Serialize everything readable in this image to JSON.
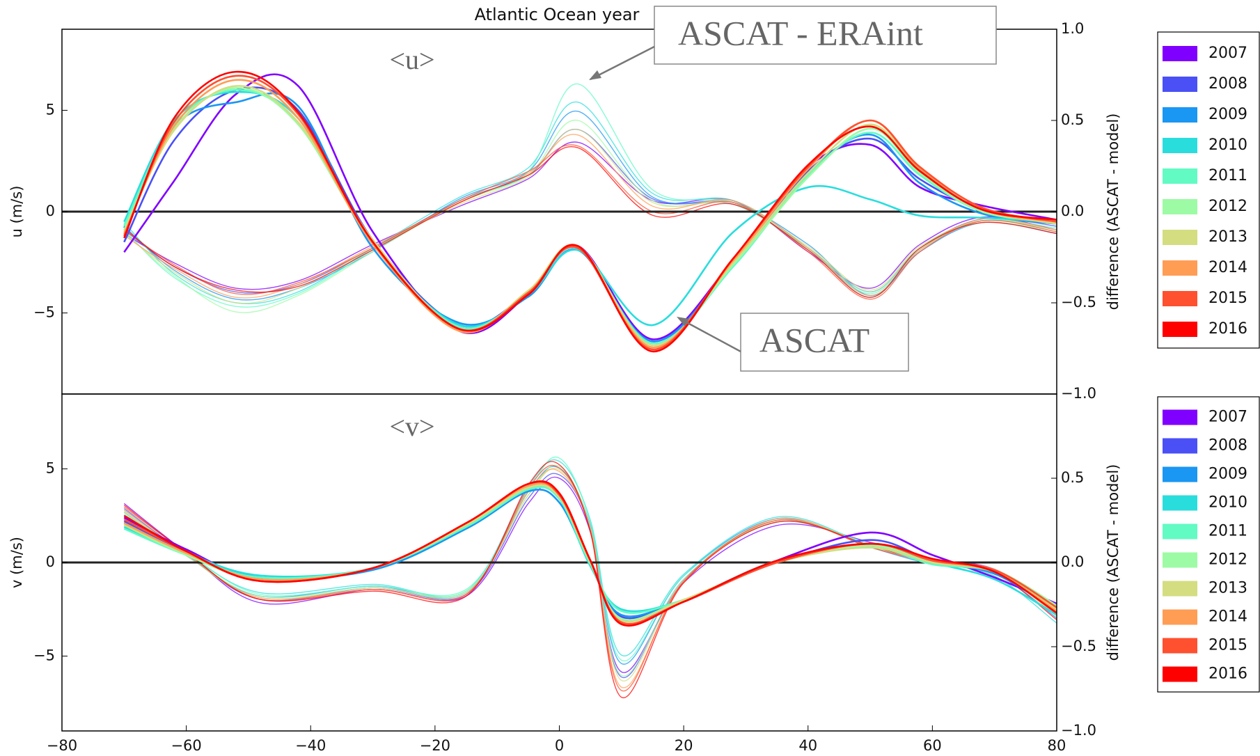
{
  "chart_data": [
    {
      "type": "line",
      "title": "Atlantic Ocean year",
      "ylabel": "u (m/s)",
      "y2label": "difference (ASCAT - model)",
      "annotations": [
        "<u>",
        "ASCAT - ERAint",
        "ASCAT"
      ],
      "x": [
        -70,
        -62,
        -52,
        -42,
        -30,
        -16,
        -5,
        3,
        15,
        28,
        40,
        50,
        58,
        68,
        80
      ],
      "xlim": [
        -80,
        80
      ],
      "ylim": [
        -9,
        9
      ],
      "yticks": [
        {
          "value": -5,
          "label": "−5"
        },
        0,
        5
      ],
      "y2lim": [
        -1,
        1
      ],
      "y2ticks": [
        {
          "value": -1,
          "label": "−1.0"
        },
        {
          "value": -0.5,
          "label": "−0.5"
        },
        {
          "value": 0,
          "label": "0.0"
        },
        0.5,
        {
          "value": 1,
          "label": "1.0"
        }
      ],
      "zero_line": true,
      "legend": "right outside",
      "series": [
        {
          "name": "2007",
          "color": "#8000ff",
          "values": [
            -2,
            1.5,
            5.8,
            6.2,
            -1,
            -5.9,
            -4.1,
            -1.7,
            -6.3,
            -2.4,
            2.2,
            3.3,
            1.2,
            0.3,
            -0.4
          ]
        },
        {
          "name": "2008",
          "color": "#4a50f5",
          "values": [
            -1.5,
            3.5,
            6,
            5,
            -1.4,
            -5.6,
            -4,
            -1.8,
            -6.4,
            -2.5,
            2,
            3.6,
            1.6,
            0.1,
            -0.5
          ]
        },
        {
          "name": "2009",
          "color": "#1a96f3",
          "values": [
            -0.8,
            4.2,
            5.4,
            5.2,
            -1.8,
            -5.5,
            -4.2,
            -1.9,
            -6.4,
            -2.6,
            1.9,
            3.8,
            1.4,
            -0.1,
            -0.6
          ]
        },
        {
          "name": "2010",
          "color": "#2adddd",
          "values": [
            -0.5,
            4.5,
            5.9,
            4.6,
            -1.6,
            -5.6,
            -4.1,
            -1.9,
            -5.6,
            -1,
            1.2,
            0.6,
            -0.2,
            -0.3,
            -0.5
          ]
        },
        {
          "name": "2011",
          "color": "#62fbc4",
          "values": [
            -0.7,
            4.3,
            6,
            4.4,
            -1.5,
            -5.7,
            -4,
            -1.8,
            -6.5,
            -2.7,
            1.8,
            3.9,
            1.8,
            0,
            -0.4
          ]
        },
        {
          "name": "2012",
          "color": "#9cfba4",
          "values": [
            -0.9,
            4.1,
            6.1,
            4.3,
            -1.5,
            -5.8,
            -4,
            -1.8,
            -6.6,
            -2.6,
            1.7,
            4.1,
            1.9,
            0,
            -0.5
          ]
        },
        {
          "name": "2013",
          "color": "#d4dd80",
          "values": [
            -1,
            4,
            6.2,
            4.4,
            -1.4,
            -5.8,
            -3.9,
            -1.7,
            -6.6,
            -2.5,
            1.9,
            4.3,
            2,
            0.1,
            -0.6
          ]
        },
        {
          "name": "2014",
          "color": "#ff9d55",
          "values": [
            -1.1,
            4.2,
            6.5,
            4.6,
            -1.6,
            -5.9,
            -4,
            -1.8,
            -6.7,
            -2.4,
            2.1,
            4.5,
            2.1,
            0.1,
            -0.5
          ]
        },
        {
          "name": "2015",
          "color": "#ff5030",
          "values": [
            -1.2,
            4.4,
            6.7,
            4.8,
            -1.5,
            -5.8,
            -4,
            -1.8,
            -6.8,
            -2.3,
            2.2,
            4.5,
            2.2,
            0.2,
            -0.5
          ]
        },
        {
          "name": "2016",
          "color": "#ff0000",
          "values": [
            -1.3,
            4.6,
            6.9,
            4.9,
            -1.5,
            -5.8,
            -4.1,
            -1.7,
            -6.9,
            -2.3,
            2.3,
            4.2,
            2,
            0.1,
            -0.4
          ]
        }
      ],
      "diff_series": [
        {
          "axis": "y2",
          "values": [
            -0.12,
            -0.28,
            -0.42,
            -0.38,
            -0.18,
            0.03,
            0.18,
            0.38,
            0.06,
            0.06,
            -0.22,
            -0.42,
            -0.18,
            -0.03,
            -0.1
          ]
        },
        {
          "axis": "y2",
          "values": [
            -0.1,
            -0.3,
            -0.44,
            -0.4,
            -0.2,
            0.06,
            0.2,
            0.45,
            0.07,
            0.04,
            -0.2,
            -0.44,
            -0.2,
            -0.04,
            -0.08
          ]
        },
        {
          "axis": "y2",
          "values": [
            -0.08,
            -0.32,
            -0.48,
            -0.42,
            -0.22,
            0.07,
            0.22,
            0.55,
            0.08,
            0.05,
            -0.18,
            -0.46,
            -0.22,
            -0.06,
            -0.12
          ]
        },
        {
          "axis": "y2",
          "values": [
            -0.06,
            -0.34,
            -0.5,
            -0.44,
            -0.2,
            0.08,
            0.24,
            0.6,
            0.1,
            0.06,
            -0.2,
            -0.47,
            -0.2,
            -0.05,
            -0.1
          ]
        },
        {
          "axis": "y2",
          "values": [
            -0.1,
            -0.36,
            -0.52,
            -0.45,
            -0.21,
            0.06,
            0.22,
            0.7,
            0.12,
            0.05,
            -0.21,
            -0.45,
            -0.21,
            -0.05,
            -0.09
          ]
        },
        {
          "axis": "y2",
          "values": [
            -0.11,
            -0.35,
            -0.55,
            -0.46,
            -0.22,
            0.05,
            0.2,
            0.5,
            0.06,
            0.04,
            -0.2,
            -0.44,
            -0.2,
            -0.06,
            -0.11
          ]
        },
        {
          "axis": "y2",
          "values": [
            -0.12,
            -0.33,
            -0.5,
            -0.42,
            -0.2,
            0.04,
            0.19,
            0.45,
            0.05,
            0.05,
            -0.19,
            -0.43,
            -0.19,
            -0.05,
            -0.1
          ]
        },
        {
          "axis": "y2",
          "values": [
            -0.13,
            -0.31,
            -0.47,
            -0.4,
            -0.19,
            0.05,
            0.21,
            0.42,
            0.03,
            0.06,
            -0.2,
            -0.46,
            -0.21,
            -0.04,
            -0.1
          ]
        },
        {
          "axis": "y2",
          "values": [
            -0.1,
            -0.29,
            -0.45,
            -0.39,
            -0.2,
            0.06,
            0.22,
            0.36,
            0,
            0.05,
            -0.22,
            -0.48,
            -0.22,
            -0.05,
            -0.11
          ]
        },
        {
          "axis": "y2",
          "values": [
            -0.09,
            -0.3,
            -0.43,
            -0.41,
            -0.21,
            0.05,
            0.2,
            0.35,
            -0.02,
            0.04,
            -0.21,
            -0.47,
            -0.2,
            -0.06,
            -0.12
          ]
        }
      ]
    },
    {
      "type": "line",
      "ylabel": "v (m/s)",
      "y2label": "difference (ASCAT - model)",
      "annotations": [
        "<v>"
      ],
      "x": [
        -70,
        -60,
        -48,
        -30,
        -15,
        -5,
        0,
        5,
        10,
        20,
        35,
        50,
        60,
        70,
        80
      ],
      "xlim": [
        -80,
        80
      ],
      "xticks": [
        {
          "value": -80,
          "label": "−80"
        },
        {
          "value": -60,
          "label": "−60"
        },
        {
          "value": -40,
          "label": "−40"
        },
        {
          "value": -20,
          "label": "−20"
        },
        0,
        20,
        40,
        60,
        80
      ],
      "ylim": [
        -9,
        9
      ],
      "yticks": [
        {
          "value": -5,
          "label": "−5"
        },
        0,
        5
      ],
      "y2lim": [
        -1,
        1
      ],
      "y2ticks": [
        {
          "value": -1,
          "label": "−1.0"
        },
        {
          "value": -0.5,
          "label": "−0.5"
        },
        {
          "value": 0,
          "label": "0.0"
        },
        0.5
      ],
      "zero_line": true,
      "legend": "right outside",
      "series": [
        {
          "name": "2007",
          "color": "#8000ff",
          "values": [
            2.4,
            0.7,
            -0.9,
            -0.3,
            2,
            4.1,
            3.6,
            0.1,
            -3,
            -2.1,
            0.1,
            1.6,
            0.4,
            -0.8,
            -2.2
          ]
        },
        {
          "name": "2008",
          "color": "#4a50f5",
          "values": [
            2.2,
            0.6,
            -0.8,
            -0.3,
            2,
            4,
            3.4,
            0,
            -2.9,
            -2,
            0,
            1.2,
            0.1,
            -0.6,
            -2.4
          ]
        },
        {
          "name": "2009",
          "color": "#1a96f3",
          "values": [
            2.1,
            0.5,
            -0.8,
            -0.4,
            1.8,
            3.8,
            3.2,
            -0.1,
            -2.8,
            -2,
            0,
            1,
            0,
            -0.6,
            -2.6
          ]
        },
        {
          "name": "2010",
          "color": "#2adddd",
          "values": [
            1.9,
            0.5,
            -0.7,
            -0.3,
            1.9,
            3.9,
            3.4,
            -0.2,
            -2.5,
            -2,
            0.1,
            0.9,
            0,
            -0.9,
            -2.8
          ]
        },
        {
          "name": "2011",
          "color": "#62fbc4",
          "values": [
            1.8,
            0.4,
            -0.8,
            -0.3,
            1.9,
            3.9,
            3.4,
            -0.1,
            -2.6,
            -2,
            0,
            0.8,
            -0.1,
            -0.5,
            -2.5
          ]
        },
        {
          "name": "2012",
          "color": "#9cfba4",
          "values": [
            2,
            0.4,
            -0.9,
            -0.3,
            2,
            4,
            3.5,
            0,
            -3,
            -2,
            0,
            0.9,
            0,
            -0.4,
            -2.3
          ]
        },
        {
          "name": "2013",
          "color": "#d4dd80",
          "values": [
            2,
            0.5,
            -0.9,
            -0.3,
            2,
            4,
            3.5,
            0,
            -3.1,
            -2,
            0,
            0.8,
            0,
            -0.5,
            -2.5
          ]
        },
        {
          "name": "2014",
          "color": "#ff9d55",
          "values": [
            2.1,
            0.5,
            -0.9,
            -0.3,
            2.1,
            4.1,
            3.6,
            0.1,
            -3.2,
            -2.1,
            0,
            1,
            0.1,
            -0.5,
            -2.6
          ]
        },
        {
          "name": "2015",
          "color": "#ff5030",
          "values": [
            2.3,
            0.6,
            -1,
            -0.3,
            2.1,
            4.2,
            3.6,
            0.1,
            -3.2,
            -2.1,
            0,
            1,
            0.1,
            -0.4,
            -2.4
          ]
        },
        {
          "name": "2016",
          "color": "#ff0000",
          "values": [
            2.5,
            0.6,
            -1,
            -0.3,
            2.1,
            4.2,
            3.7,
            0.1,
            -3.3,
            -2.1,
            0.1,
            1,
            0.2,
            -0.5,
            -2.7
          ]
        }
      ],
      "diff_series": [
        {
          "axis": "y2",
          "values": [
            0.35,
            0.06,
            -0.24,
            -0.16,
            -0.2,
            0.35,
            0.5,
            0.18,
            -0.65,
            -0.12,
            0.22,
            0.12,
            0.02,
            -0.04,
            -0.28
          ]
        },
        {
          "axis": "y2",
          "values": [
            0.32,
            0.05,
            -0.22,
            -0.15,
            -0.19,
            0.38,
            0.52,
            0.2,
            -0.68,
            -0.1,
            0.24,
            0.1,
            0,
            -0.05,
            -0.3
          ]
        },
        {
          "axis": "y2",
          "values": [
            0.3,
            0.04,
            -0.2,
            -0.14,
            -0.18,
            0.42,
            0.56,
            0.22,
            -0.6,
            -0.08,
            0.26,
            0.09,
            -0.01,
            -0.06,
            -0.33
          ]
        },
        {
          "axis": "y2",
          "values": [
            0.28,
            0.05,
            -0.18,
            -0.13,
            -0.17,
            0.45,
            0.6,
            0.25,
            -0.55,
            -0.07,
            0.27,
            0.1,
            0,
            -0.08,
            -0.36
          ]
        },
        {
          "axis": "y2",
          "values": [
            0.29,
            0.06,
            -0.19,
            -0.14,
            -0.16,
            0.43,
            0.62,
            0.24,
            -0.58,
            -0.08,
            0.25,
            0.11,
            0.01,
            -0.05,
            -0.3
          ]
        },
        {
          "axis": "y2",
          "values": [
            0.31,
            0.05,
            -0.2,
            -0.15,
            -0.17,
            0.4,
            0.57,
            0.21,
            -0.67,
            -0.1,
            0.24,
            0.1,
            0,
            -0.04,
            -0.29
          ]
        },
        {
          "axis": "y2",
          "values": [
            0.3,
            0.04,
            -0.21,
            -0.15,
            -0.18,
            0.4,
            0.55,
            0.2,
            -0.7,
            -0.11,
            0.25,
            0.1,
            0,
            -0.05,
            -0.32
          ]
        },
        {
          "axis": "y2",
          "values": [
            0.31,
            0.05,
            -0.21,
            -0.16,
            -0.19,
            0.42,
            0.54,
            0.19,
            -0.74,
            -0.12,
            0.26,
            0.09,
            0.01,
            -0.05,
            -0.31
          ]
        },
        {
          "axis": "y2",
          "values": [
            0.33,
            0.06,
            -0.22,
            -0.16,
            -0.19,
            0.44,
            0.56,
            0.19,
            -0.76,
            -0.11,
            0.25,
            0.09,
            0,
            -0.05,
            -0.3
          ]
        },
        {
          "axis": "y2",
          "values": [
            0.34,
            0.06,
            -0.22,
            -0.17,
            -0.2,
            0.46,
            0.58,
            0.18,
            -0.8,
            -0.12,
            0.24,
            0.1,
            0,
            -0.06,
            -0.34
          ]
        }
      ]
    }
  ]
}
